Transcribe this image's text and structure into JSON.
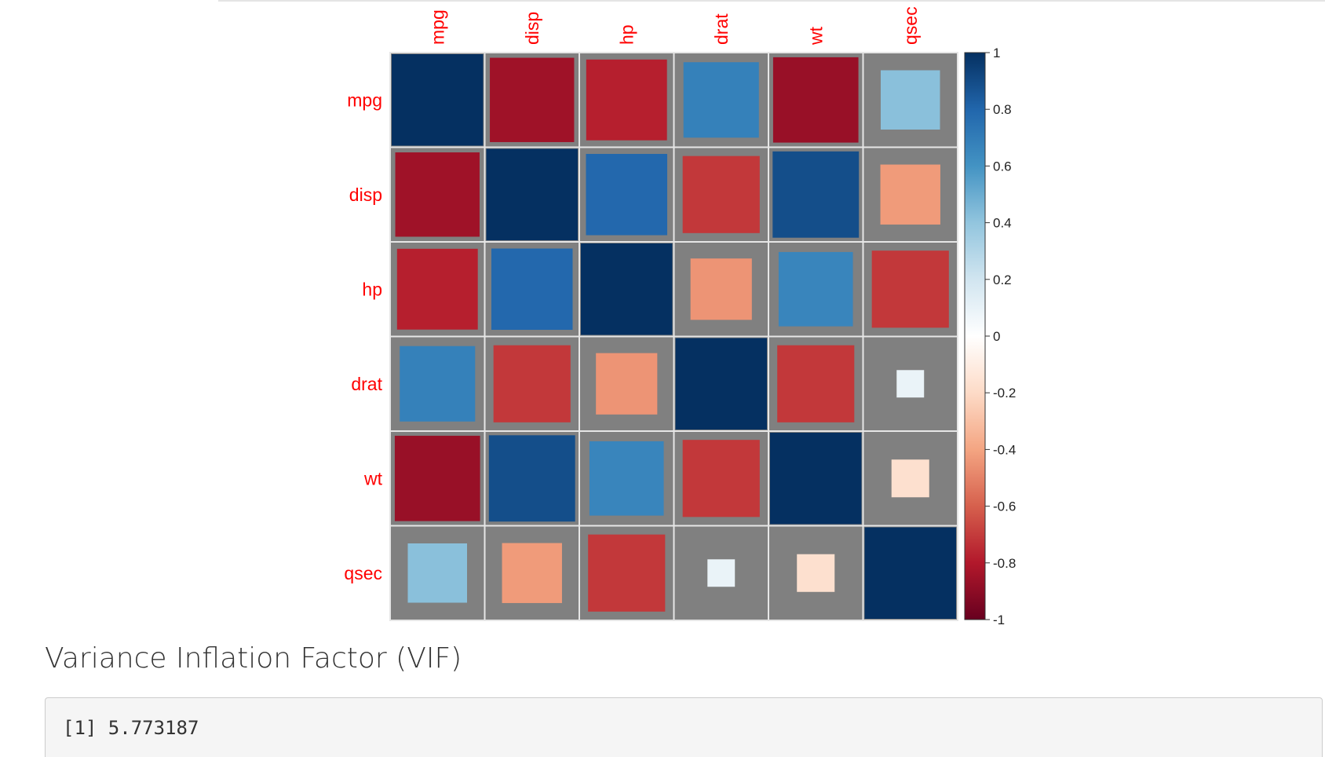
{
  "chart_data": {
    "type": "heatmap",
    "method": "square",
    "variables": [
      "mpg",
      "disp",
      "hp",
      "drat",
      "wt",
      "qsec"
    ],
    "matrix": [
      [
        1.0,
        -0.85,
        -0.78,
        0.68,
        -0.87,
        0.42
      ],
      [
        -0.85,
        1.0,
        0.79,
        -0.71,
        0.89,
        -0.43
      ],
      [
        -0.78,
        0.79,
        1.0,
        -0.45,
        0.66,
        -0.71
      ],
      [
        0.68,
        -0.71,
        -0.45,
        1.0,
        -0.71,
        0.09
      ],
      [
        -0.87,
        0.89,
        0.66,
        -0.71,
        1.0,
        -0.17
      ],
      [
        0.42,
        -0.43,
        -0.71,
        0.09,
        -0.17,
        1.0
      ]
    ],
    "colorbar": {
      "range": [
        -1,
        1
      ],
      "ticks": [
        "1",
        "0.8",
        "0.6",
        "0.4",
        "0.2",
        "0",
        "-0.2",
        "-0.4",
        "-0.6",
        "-0.8",
        "-1"
      ]
    },
    "colors": {
      "label": "#ff0000",
      "cell_background": "#808080",
      "grid": "#e6e6e6",
      "scale": [
        "#67001f",
        "#b2182b",
        "#d6604d",
        "#f4a582",
        "#fddbc7",
        "#ffffff",
        "#d1e5f0",
        "#92c5de",
        "#4393c3",
        "#2166ac",
        "#053061"
      ]
    }
  },
  "section": {
    "heading": "Variance Inflation Factor (VIF)"
  },
  "output": {
    "text": "[1] 5.773187"
  }
}
